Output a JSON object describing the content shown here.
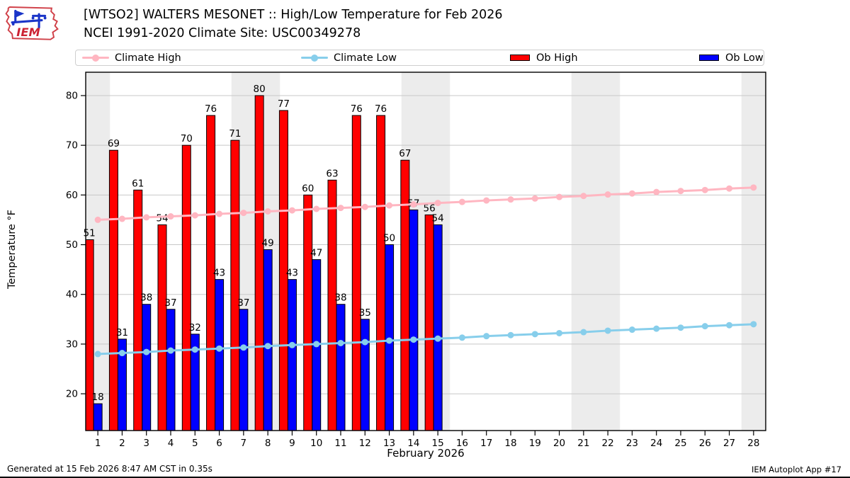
{
  "header": {
    "title": "[WTSO2] WALTERS MESONET :: High/Low Temperature for Feb 2026",
    "subtitle": "NCEI 1991-2020 Climate Site: USC00349278",
    "logo_text": "IEM"
  },
  "legend": {
    "climate_high": "Climate High",
    "climate_low": "Climate Low",
    "ob_high": "Ob High",
    "ob_low": "Ob Low"
  },
  "colors": {
    "ob_high": "#ff0000",
    "ob_low": "#0000ff",
    "climate_high": "#ffb6c1",
    "climate_low": "#87ceeb",
    "weekend_band": "#ececec",
    "gridline": "#c8c8c8",
    "logo_red": "#cc2233",
    "logo_blue": "#1a35c8"
  },
  "chart_data": {
    "type": "bar",
    "title": "[WTSO2] WALTERS MESONET :: High/Low Temperature for Feb 2026",
    "subtitle": "NCEI 1991-2020 Climate Site: USC00349278",
    "xlabel": "February 2026",
    "ylabel": "Temperature °F",
    "x": [
      1,
      2,
      3,
      4,
      5,
      6,
      7,
      8,
      9,
      10,
      11,
      12,
      13,
      14,
      15,
      16,
      17,
      18,
      19,
      20,
      21,
      22,
      23,
      24,
      25,
      26,
      27,
      28
    ],
    "yticks": [
      20,
      30,
      40,
      50,
      60,
      70,
      80
    ],
    "ylim": [
      12.6,
      84.7
    ],
    "grid": "horizontal",
    "legend_position": "top",
    "weekend_shaded_days": [
      1,
      7,
      8,
      14,
      15,
      21,
      22,
      28
    ],
    "series": [
      {
        "name": "Ob High",
        "type": "bar",
        "color": "#ff0000",
        "values": [
          51,
          69,
          61,
          54,
          70,
          76,
          71,
          80,
          77,
          60,
          63,
          76,
          76,
          67,
          56
        ]
      },
      {
        "name": "Ob Low",
        "type": "bar",
        "color": "#0000ff",
        "values": [
          18,
          31,
          38,
          37,
          32,
          43,
          37,
          49,
          43,
          47,
          38,
          35,
          50,
          57,
          54
        ]
      },
      {
        "name": "Climate High",
        "type": "line",
        "color": "#ffb6c1",
        "values": [
          55.0,
          55.2,
          55.5,
          55.7,
          55.9,
          56.2,
          56.4,
          56.7,
          56.9,
          57.2,
          57.4,
          57.6,
          57.9,
          58.1,
          58.4,
          58.6,
          58.9,
          59.1,
          59.3,
          59.6,
          59.8,
          60.1,
          60.3,
          60.6,
          60.8,
          61.0,
          61.3,
          61.5
        ]
      },
      {
        "name": "Climate Low",
        "type": "line",
        "color": "#87ceeb",
        "values": [
          28.0,
          28.2,
          28.4,
          28.7,
          28.9,
          29.1,
          29.3,
          29.6,
          29.8,
          30.0,
          30.2,
          30.4,
          30.7,
          30.9,
          31.1,
          31.3,
          31.6,
          31.8,
          32.0,
          32.2,
          32.4,
          32.7,
          32.9,
          33.1,
          33.3,
          33.6,
          33.8,
          34.0
        ]
      }
    ]
  },
  "footer": {
    "left": "Generated at 15 Feb 2026 8:47 AM CST in 0.35s",
    "right": "IEM Autoplot App #17"
  }
}
